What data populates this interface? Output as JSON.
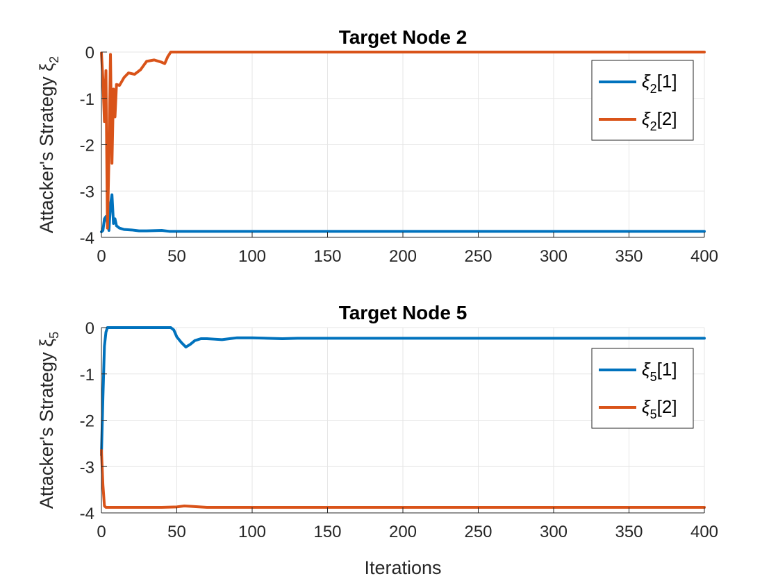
{
  "chart_data": [
    {
      "type": "line",
      "title": "Target Node 2",
      "ylabel": "Attacker's Strategy ξ",
      "ylabel_sub": "2",
      "xlabel": "",
      "xlim": [
        0,
        400
      ],
      "ylim": [
        -4,
        0
      ],
      "xticks": [
        "0",
        "50",
        "100",
        "150",
        "200",
        "250",
        "300",
        "350",
        "400"
      ],
      "yticks": [
        "0",
        "-1",
        "-2",
        "-3",
        "-4"
      ],
      "grid": true,
      "legend_position": "top-right",
      "series": [
        {
          "name": "ξ2[1]",
          "legend_main": "ξ",
          "legend_sub": "2",
          "legend_tail": "[1]",
          "color": "#0072BD",
          "points": [
            [
              0,
              -3.88
            ],
            [
              1,
              -3.85
            ],
            [
              2,
              -3.6
            ],
            [
              3,
              -3.55
            ],
            [
              4,
              -3.7
            ],
            [
              5,
              -3.85
            ],
            [
              6,
              -3.3
            ],
            [
              7,
              -3.08
            ],
            [
              8,
              -3.7
            ],
            [
              9,
              -3.6
            ],
            [
              10,
              -3.75
            ],
            [
              12,
              -3.8
            ],
            [
              15,
              -3.83
            ],
            [
              20,
              -3.84
            ],
            [
              25,
              -3.86
            ],
            [
              30,
              -3.86
            ],
            [
              40,
              -3.85
            ],
            [
              45,
              -3.87
            ],
            [
              50,
              -3.87
            ],
            [
              100,
              -3.87
            ],
            [
              200,
              -3.87
            ],
            [
              300,
              -3.87
            ],
            [
              400,
              -3.87
            ]
          ]
        },
        {
          "name": "ξ2[2]",
          "legend_main": "ξ",
          "legend_sub": "2",
          "legend_tail": "[2]",
          "color": "#D95319",
          "points": [
            [
              0,
              -0.02
            ],
            [
              1,
              -0.6
            ],
            [
              2,
              -1.5
            ],
            [
              3,
              -0.4
            ],
            [
              4,
              -3.8
            ],
            [
              5,
              -2.3
            ],
            [
              6,
              -0.05
            ],
            [
              7,
              -2.4
            ],
            [
              8,
              -0.8
            ],
            [
              9,
              -1.4
            ],
            [
              10,
              -0.7
            ],
            [
              12,
              -0.72
            ],
            [
              15,
              -0.55
            ],
            [
              18,
              -0.45
            ],
            [
              22,
              -0.48
            ],
            [
              26,
              -0.38
            ],
            [
              30,
              -0.2
            ],
            [
              35,
              -0.17
            ],
            [
              40,
              -0.22
            ],
            [
              42,
              -0.25
            ],
            [
              44,
              -0.1
            ],
            [
              46,
              0
            ],
            [
              50,
              0
            ],
            [
              100,
              0
            ],
            [
              200,
              0
            ],
            [
              300,
              0
            ],
            [
              400,
              0
            ]
          ]
        }
      ]
    },
    {
      "type": "line",
      "title": "Target Node 5",
      "ylabel": "Attacker's Strategy ξ",
      "ylabel_sub": "5",
      "xlabel": "Iterations",
      "xlim": [
        0,
        400
      ],
      "ylim": [
        -4,
        0
      ],
      "xticks": [
        "0",
        "50",
        "100",
        "150",
        "200",
        "250",
        "300",
        "350",
        "400"
      ],
      "yticks": [
        "0",
        "-1",
        "-2",
        "-3",
        "-4"
      ],
      "grid": true,
      "legend_position": "right",
      "series": [
        {
          "name": "ξ5[1]",
          "legend_main": "ξ",
          "legend_sub": "5",
          "legend_tail": "[1]",
          "color": "#0072BD",
          "points": [
            [
              0,
              -2.75
            ],
            [
              1,
              -1.5
            ],
            [
              2,
              -0.4
            ],
            [
              3,
              -0.1
            ],
            [
              4,
              0
            ],
            [
              10,
              0
            ],
            [
              20,
              0
            ],
            [
              30,
              0
            ],
            [
              40,
              0
            ],
            [
              46,
              0
            ],
            [
              48,
              -0.05
            ],
            [
              50,
              -0.2
            ],
            [
              53,
              -0.32
            ],
            [
              56,
              -0.42
            ],
            [
              59,
              -0.36
            ],
            [
              62,
              -0.28
            ],
            [
              66,
              -0.24
            ],
            [
              70,
              -0.24
            ],
            [
              75,
              -0.25
            ],
            [
              80,
              -0.26
            ],
            [
              85,
              -0.24
            ],
            [
              90,
              -0.22
            ],
            [
              100,
              -0.22
            ],
            [
              110,
              -0.23
            ],
            [
              120,
              -0.24
            ],
            [
              130,
              -0.23
            ],
            [
              140,
              -0.23
            ],
            [
              160,
              -0.23
            ],
            [
              200,
              -0.23
            ],
            [
              300,
              -0.23
            ],
            [
              400,
              -0.23
            ]
          ]
        },
        {
          "name": "ξ5[2]",
          "legend_main": "ξ",
          "legend_sub": "5",
          "legend_tail": "[2]",
          "color": "#D95319",
          "points": [
            [
              0,
              -2.65
            ],
            [
              1,
              -3.4
            ],
            [
              2,
              -3.85
            ],
            [
              3,
              -3.88
            ],
            [
              10,
              -3.88
            ],
            [
              20,
              -3.88
            ],
            [
              30,
              -3.88
            ],
            [
              40,
              -3.88
            ],
            [
              50,
              -3.87
            ],
            [
              55,
              -3.85
            ],
            [
              60,
              -3.86
            ],
            [
              70,
              -3.88
            ],
            [
              100,
              -3.88
            ],
            [
              200,
              -3.88
            ],
            [
              300,
              -3.88
            ],
            [
              400,
              -3.88
            ]
          ]
        }
      ]
    }
  ]
}
